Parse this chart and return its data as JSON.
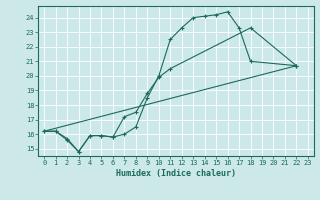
{
  "bg_color": "#cde8e8",
  "grid_color": "#b0d4d4",
  "line_color": "#1a6b5a",
  "xlabel": "Humidex (Indice chaleur)",
  "xlim": [
    -0.5,
    23.5
  ],
  "ylim": [
    14.5,
    24.8
  ],
  "yticks": [
    15,
    16,
    17,
    18,
    19,
    20,
    21,
    22,
    23,
    24
  ],
  "xticks": [
    0,
    1,
    2,
    3,
    4,
    5,
    6,
    7,
    8,
    9,
    10,
    11,
    12,
    13,
    14,
    15,
    16,
    17,
    18,
    19,
    20,
    21,
    22,
    23
  ],
  "series": [
    {
      "x": [
        0,
        1,
        2,
        3,
        4,
        5,
        6,
        7,
        8,
        9,
        10,
        11,
        12,
        13,
        14,
        15,
        16,
        17,
        18,
        22
      ],
      "y": [
        16.2,
        16.2,
        15.7,
        14.8,
        15.9,
        15.9,
        15.8,
        16.0,
        16.5,
        18.5,
        20.0,
        22.5,
        23.3,
        24.0,
        24.1,
        24.2,
        24.4,
        23.3,
        21.0,
        20.7
      ],
      "marker": "+"
    },
    {
      "x": [
        0,
        1,
        2,
        3,
        4,
        5,
        6,
        7,
        8,
        9,
        10,
        11,
        18,
        22
      ],
      "y": [
        16.2,
        16.2,
        15.6,
        14.8,
        15.9,
        15.9,
        15.8,
        17.2,
        17.5,
        18.8,
        19.9,
        20.5,
        23.3,
        20.7
      ],
      "marker": "+"
    },
    {
      "x": [
        0,
        22
      ],
      "y": [
        16.2,
        20.7
      ],
      "marker": null
    }
  ]
}
